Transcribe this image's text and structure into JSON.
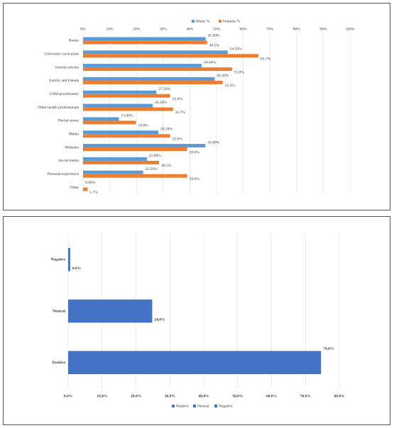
{
  "chart_data": [
    {
      "type": "bar",
      "orientation": "horizontal",
      "grid": true,
      "legend": "top",
      "categories": [
        "Books",
        "University curriculum",
        "Journal articles",
        "Family and friends",
        "CAM practitioners",
        "Other health professionals",
        "Herbal stores",
        "Media",
        "Websites",
        "Social media",
        "Personal experience",
        "Other"
      ],
      "series": [
        {
          "name": "Males %",
          "color": "#5b9bd5",
          "values": [
            45.9,
            54.2,
            44.4,
            49.3,
            27.5,
            26.1,
            13.4,
            28.2,
            45.8,
            23.9,
            22.5,
            0.0
          ],
          "value_labels": [
            "45.90%",
            "54.20%",
            "44.40%",
            "49.30%",
            "27.50%",
            "26.10%",
            "13.40%",
            "28.20%",
            "45.80%",
            "23.90%",
            "22.50%",
            "0.00%"
          ]
        },
        {
          "name": "Females %",
          "color": "#ed7d31",
          "values": [
            46.5,
            65.7,
            55.8,
            52.3,
            32.6,
            33.7,
            19.8,
            32.6,
            39.0,
            28.5,
            39.0,
            1.7
          ],
          "value_labels": [
            "46.5%",
            "65.7%",
            "55.8%",
            "52.3%",
            "32.6%",
            "33.7%",
            "19.8%",
            "32.6%",
            "39.0%",
            "28.5%",
            "39.0%",
            "1.7%"
          ]
        }
      ],
      "xlim": [
        0,
        100
      ],
      "xticks": [
        {
          "value": 0,
          "label": "0%"
        },
        {
          "value": 10,
          "label": "10%"
        },
        {
          "value": 20,
          "label": "20%"
        },
        {
          "value": 30,
          "label": "30%"
        },
        {
          "value": 40,
          "label": "40%"
        },
        {
          "value": 50,
          "label": "50%"
        },
        {
          "value": 60,
          "label": "60%"
        },
        {
          "value": 70,
          "label": "70%"
        },
        {
          "value": 80,
          "label": "80%"
        },
        {
          "value": 90,
          "label": "90%"
        },
        {
          "value": 100,
          "label": "100%"
        }
      ]
    },
    {
      "type": "bar",
      "orientation": "horizontal",
      "grid": true,
      "legend": "bottom",
      "color": "#4472c4",
      "categories": [
        "Negative",
        "Neutral",
        "Positive"
      ],
      "values": [
        0.6,
        24.8,
        74.6
      ],
      "value_labels": [
        "0.6%",
        "24.8%",
        "74.6%"
      ],
      "xlim": [
        0,
        80
      ],
      "xticks": [
        {
          "value": 0,
          "label": "0.0%"
        },
        {
          "value": 10,
          "label": "10.0%"
        },
        {
          "value": 20,
          "label": "20.0%"
        },
        {
          "value": 30,
          "label": "30.0%"
        },
        {
          "value": 40,
          "label": "40.0%"
        },
        {
          "value": 50,
          "label": "50.0%"
        },
        {
          "value": 60,
          "label": "60.0%"
        },
        {
          "value": 70,
          "label": "70.0%"
        },
        {
          "value": 80,
          "label": "80.0%"
        }
      ]
    }
  ]
}
